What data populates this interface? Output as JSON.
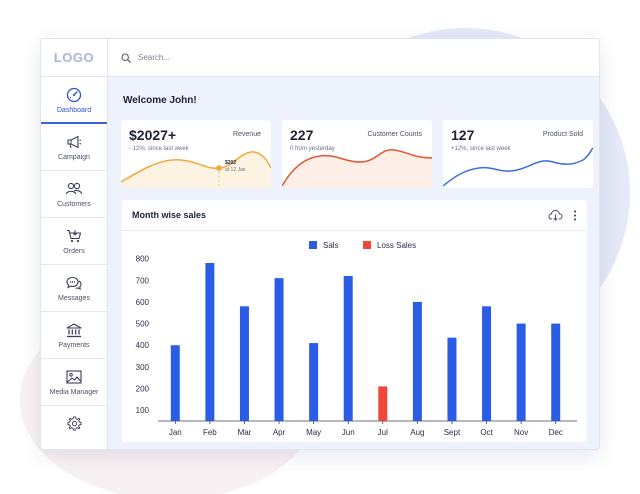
{
  "brand": {
    "logo": "LOGO"
  },
  "search": {
    "placeholder": "Search..."
  },
  "sidebar": {
    "items": [
      {
        "label": "Dashboard",
        "icon": "gauge-icon",
        "active": true
      },
      {
        "label": "Campaign",
        "icon": "megaphone-icon"
      },
      {
        "label": "Customers",
        "icon": "users-icon"
      },
      {
        "label": "Orders",
        "icon": "cart-icon"
      },
      {
        "label": "Messages",
        "icon": "chat-icon"
      },
      {
        "label": "Payments",
        "icon": "bank-icon"
      },
      {
        "label": "Media Manager",
        "icon": "image-icon"
      }
    ],
    "settings_icon": "gear-icon"
  },
  "main": {
    "welcome": "Welcome John!"
  },
  "cards": [
    {
      "value": "$2027+",
      "label": "Revenue",
      "sub": "- 12%, since last week",
      "tooltip_value": "$202",
      "tooltip_date": "at 12 Jan",
      "color": "#f2a93b",
      "fill": "#fdf3e3"
    },
    {
      "value": "227",
      "label": "Customer Counts",
      "sub": "0 from yesterday",
      "color": "#e2572d",
      "fill": "#fdeee8"
    },
    {
      "value": "127",
      "label": "Product Sold",
      "sub": "+12%, since last week",
      "color": "#3d6fd9",
      "fill": "#ffffff"
    }
  ],
  "chart_panel": {
    "title": "Month wise sales",
    "download_icon": "cloud-download-icon",
    "menu_icon": "more-vertical-icon"
  },
  "chart_data": {
    "type": "bar",
    "categories": [
      "Jan",
      "Feb",
      "Mar",
      "Apr",
      "May",
      "Jun",
      "Jul",
      "Aug",
      "Sept",
      "Oct",
      "Nov",
      "Dec"
    ],
    "series": [
      {
        "name": "Sals",
        "color": "#2b5ce6",
        "values": [
          400,
          780,
          580,
          710,
          410,
          720,
          null,
          600,
          435,
          580,
          500,
          500
        ]
      },
      {
        "name": "Loss Sales",
        "color": "#f0473a",
        "values": [
          null,
          null,
          null,
          null,
          null,
          null,
          210,
          null,
          null,
          null,
          null,
          null
        ]
      }
    ],
    "yticks": [
      100,
      200,
      300,
      400,
      500,
      600,
      700,
      800
    ],
    "ylim": [
      50,
      840
    ],
    "legend_position": "top-center",
    "grid": false
  }
}
